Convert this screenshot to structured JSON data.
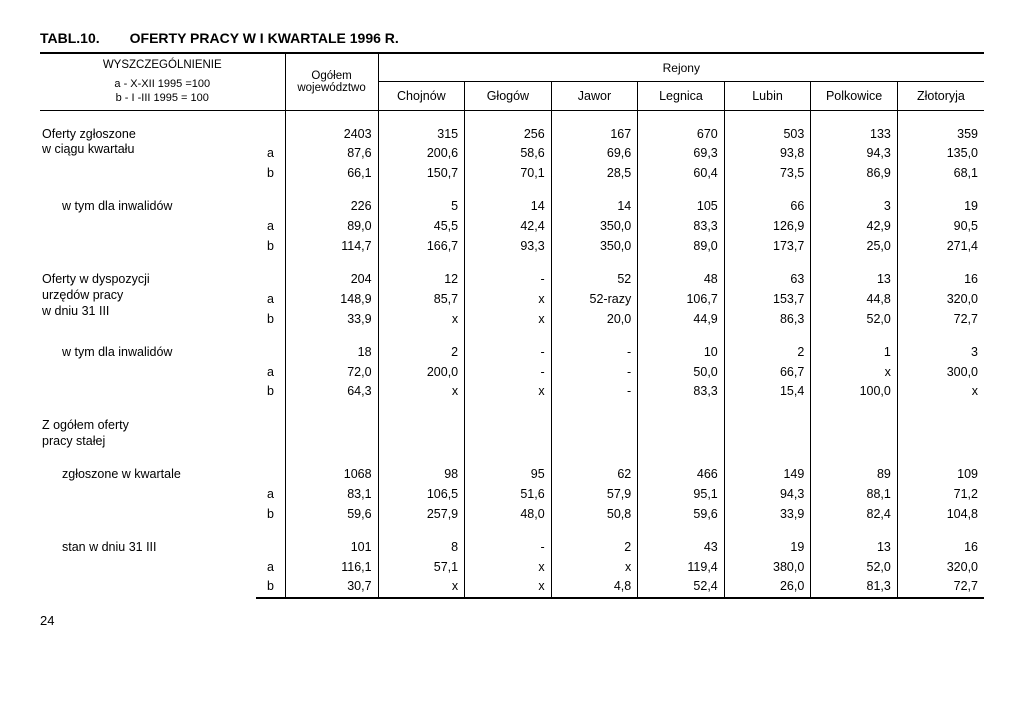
{
  "title": {
    "left": "TABL.10.",
    "right": "OFERTY PRACY W I KWARTALE 1996 R."
  },
  "header": {
    "spec": "WYSZCZEGÓLNIENIE",
    "note_a": "a - X-XII 1995 =100",
    "note_b": "b - I -III 1995 = 100",
    "ogolem": "Ogółem\nwojewództwo",
    "rejony": "Rejony",
    "cols": [
      "Chojnów",
      "Głogów",
      "Jawor",
      "Legnica",
      "Lubin",
      "Polkowice",
      "Złotoryja"
    ]
  },
  "groups": [
    {
      "label": "Oferty zgłoszone\nw ciągu kwartału",
      "rows": [
        {
          "ab": "",
          "cells": [
            "2403",
            "315",
            "256",
            "167",
            "670",
            "503",
            "133",
            "359"
          ]
        },
        {
          "ab": "a",
          "cells": [
            "87,6",
            "200,6",
            "58,6",
            "69,6",
            "69,3",
            "93,8",
            "94,3",
            "135,0"
          ]
        },
        {
          "ab": "b",
          "cells": [
            "66,1",
            "150,7",
            "70,1",
            "28,5",
            "60,4",
            "73,5",
            "86,9",
            "68,1"
          ]
        }
      ]
    },
    {
      "label": "w tym dla inwalidów",
      "indent": true,
      "rows": [
        {
          "ab": "",
          "cells": [
            "226",
            "5",
            "14",
            "14",
            "105",
            "66",
            "3",
            "19"
          ]
        },
        {
          "ab": "a",
          "cells": [
            "89,0",
            "45,5",
            "42,4",
            "350,0",
            "83,3",
            "126,9",
            "42,9",
            "90,5"
          ]
        },
        {
          "ab": "b",
          "cells": [
            "114,7",
            "166,7",
            "93,3",
            "350,0",
            "89,0",
            "173,7",
            "25,0",
            "271,4"
          ]
        }
      ]
    },
    {
      "label": "Oferty w dyspozycji\nurzędów pracy\nw dniu 31 III",
      "rows": [
        {
          "ab": "",
          "cells": [
            "204",
            "12",
            "-",
            "52",
            "48",
            "63",
            "13",
            "16"
          ]
        },
        {
          "ab": "a",
          "cells": [
            "148,9",
            "85,7",
            "x",
            "52-razy",
            "106,7",
            "153,7",
            "44,8",
            "320,0"
          ]
        },
        {
          "ab": "b",
          "cells": [
            "33,9",
            "x",
            "x",
            "20,0",
            "44,9",
            "86,3",
            "52,0",
            "72,7"
          ]
        }
      ]
    },
    {
      "label": "w tym dla inwalidów",
      "indent": true,
      "rows": [
        {
          "ab": "",
          "cells": [
            "18",
            "2",
            "-",
            "-",
            "10",
            "2",
            "1",
            "3"
          ]
        },
        {
          "ab": "a",
          "cells": [
            "72,0",
            "200,0",
            "-",
            "-",
            "50,0",
            "66,7",
            "x",
            "300,0"
          ]
        },
        {
          "ab": "b",
          "cells": [
            "64,3",
            "x",
            "x",
            "-",
            "83,3",
            "15,4",
            "100,0",
            "x"
          ]
        }
      ]
    },
    {
      "label": "Z ogółem oferty\npracy stałej",
      "rows": []
    },
    {
      "label": "zgłoszone w kwartale",
      "indent": true,
      "rows": [
        {
          "ab": "",
          "cells": [
            "1068",
            "98",
            "95",
            "62",
            "466",
            "149",
            "89",
            "109"
          ]
        },
        {
          "ab": "a",
          "cells": [
            "83,1",
            "106,5",
            "51,6",
            "57,9",
            "95,1",
            "94,3",
            "88,1",
            "71,2"
          ]
        },
        {
          "ab": "b",
          "cells": [
            "59,6",
            "257,9",
            "48,0",
            "50,8",
            "59,6",
            "33,9",
            "82,4",
            "104,8"
          ]
        }
      ]
    },
    {
      "label": "stan w dniu 31 III",
      "indent": true,
      "rows": [
        {
          "ab": "",
          "cells": [
            "101",
            "8",
            "-",
            "2",
            "43",
            "19",
            "13",
            "16"
          ]
        },
        {
          "ab": "a",
          "cells": [
            "116,1",
            "57,1",
            "x",
            "x",
            "119,4",
            "380,0",
            "52,0",
            "320,0"
          ]
        },
        {
          "ab": "b",
          "cells": [
            "30,7",
            "x",
            "x",
            "4,8",
            "52,4",
            "26,0",
            "81,3",
            "72,7"
          ]
        }
      ]
    }
  ],
  "page_number": "24"
}
